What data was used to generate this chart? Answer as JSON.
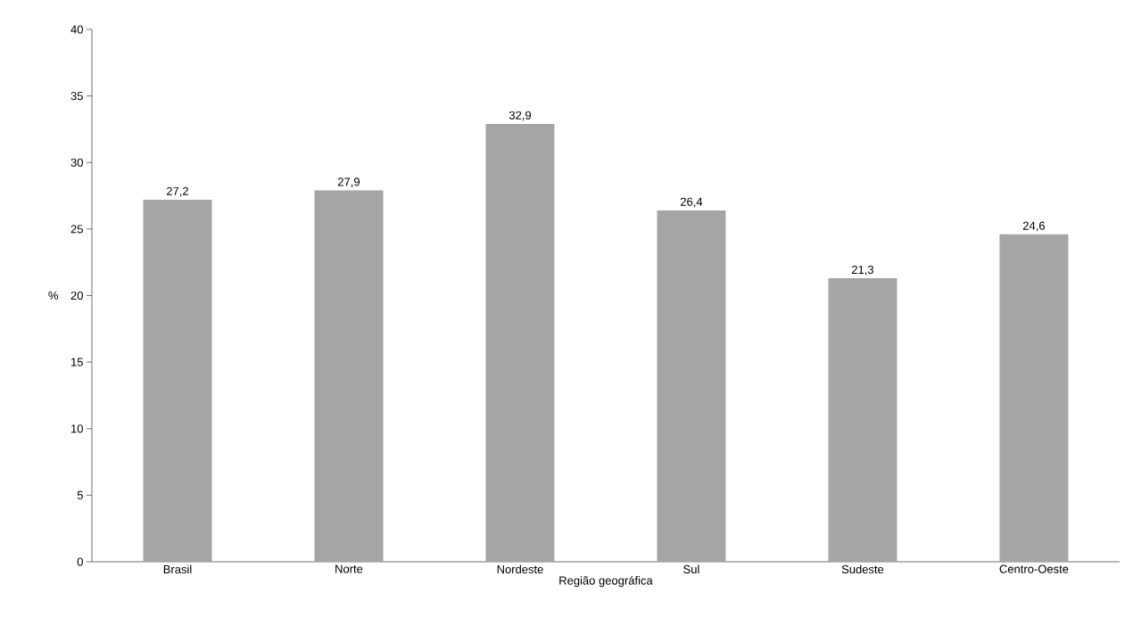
{
  "chart_data": {
    "type": "bar",
    "xlabel": "Região geográfica",
    "ylabel": "%",
    "categories": [
      "Brasil",
      "Norte",
      "Nordeste",
      "Sul",
      "Sudeste",
      "Centro-Oeste"
    ],
    "values": [
      27.2,
      27.9,
      32.9,
      26.4,
      21.3,
      24.6
    ],
    "value_labels": [
      "27,2",
      "27,9",
      "32,9",
      "26,4",
      "21,3",
      "24,6"
    ],
    "color": "#a5a5a5",
    "ylim": [
      0,
      40
    ],
    "yticks": [
      0,
      5,
      10,
      15,
      20,
      25,
      30,
      35,
      40
    ],
    "grid": false
  }
}
